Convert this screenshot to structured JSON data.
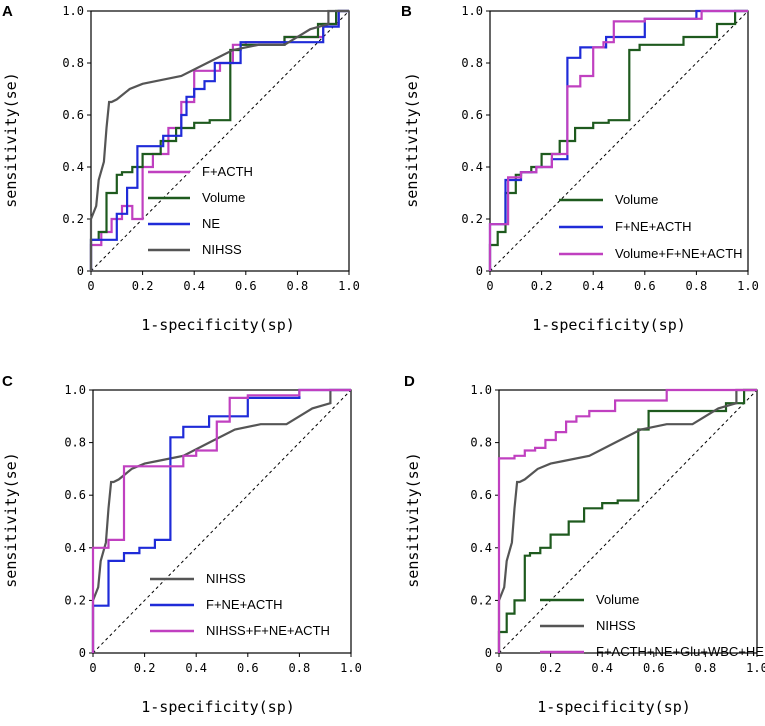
{
  "colors": {
    "magenta": "#c040c0",
    "green": "#1e5a1e",
    "blue": "#1f2bd8",
    "gray": "#555555",
    "diagonal": "#000000"
  },
  "chart_data": [
    {
      "type": "line",
      "panel": "A",
      "xlabel": "1-specificity(sp)",
      "ylabel": "sensitivity(se)",
      "xlim": [
        0,
        1
      ],
      "ylim": [
        0,
        1
      ],
      "x_ticks": [
        "0",
        "0.2",
        "0.4",
        "0.6",
        "0.8",
        "1.0"
      ],
      "y_ticks": [
        "0",
        "0.2",
        "0.4",
        "0.6",
        "0.8",
        "1.0"
      ],
      "legend_position": "right",
      "diagonal": true,
      "series": [
        {
          "name": "F+ACTH",
          "color": "#c040c0",
          "x": [
            0,
            0,
            0.04,
            0.04,
            0.08,
            0.08,
            0.12,
            0.12,
            0.16,
            0.16,
            0.2,
            0.2,
            0.24,
            0.24,
            0.3,
            0.3,
            0.35,
            0.35,
            0.4,
            0.4,
            0.5,
            0.5,
            0.55,
            0.55,
            0.6,
            0.6,
            0.75,
            0.75,
            0.9,
            0.9,
            0.96,
            0.96,
            1.0
          ],
          "y": [
            0,
            0.1,
            0.1,
            0.15,
            0.15,
            0.2,
            0.2,
            0.25,
            0.25,
            0.2,
            0.2,
            0.4,
            0.4,
            0.45,
            0.45,
            0.55,
            0.55,
            0.65,
            0.65,
            0.77,
            0.77,
            0.8,
            0.8,
            0.87,
            0.87,
            0.88,
            0.88,
            0.9,
            0.9,
            0.95,
            0.95,
            1.0,
            1.0
          ]
        },
        {
          "name": "Volume",
          "color": "#1e5a1e",
          "x": [
            0,
            0,
            0.03,
            0.03,
            0.06,
            0.06,
            0.1,
            0.1,
            0.12,
            0.12,
            0.16,
            0.16,
            0.2,
            0.2,
            0.27,
            0.27,
            0.33,
            0.33,
            0.4,
            0.4,
            0.46,
            0.46,
            0.54,
            0.54,
            0.58,
            0.58,
            0.75,
            0.75,
            0.88,
            0.88,
            0.95,
            0.95,
            1.0
          ],
          "y": [
            0,
            0.12,
            0.12,
            0.15,
            0.15,
            0.3,
            0.3,
            0.37,
            0.37,
            0.38,
            0.38,
            0.4,
            0.4,
            0.45,
            0.45,
            0.5,
            0.5,
            0.55,
            0.55,
            0.57,
            0.57,
            0.58,
            0.58,
            0.85,
            0.85,
            0.87,
            0.87,
            0.9,
            0.9,
            0.95,
            0.95,
            1.0,
            1.0
          ]
        },
        {
          "name": "NE",
          "color": "#1f2bd8",
          "x": [
            0,
            0,
            0.05,
            0.05,
            0.1,
            0.1,
            0.14,
            0.14,
            0.18,
            0.18,
            0.24,
            0.24,
            0.28,
            0.28,
            0.35,
            0.35,
            0.37,
            0.37,
            0.4,
            0.4,
            0.44,
            0.44,
            0.48,
            0.48,
            0.58,
            0.58,
            0.75,
            0.75,
            0.9,
            0.9,
            0.96,
            0.96,
            1.0
          ],
          "y": [
            0,
            0.12,
            0.12,
            0.12,
            0.12,
            0.22,
            0.22,
            0.32,
            0.32,
            0.48,
            0.48,
            0.48,
            0.48,
            0.52,
            0.52,
            0.6,
            0.6,
            0.67,
            0.67,
            0.7,
            0.7,
            0.73,
            0.73,
            0.8,
            0.8,
            0.88,
            0.88,
            0.88,
            0.88,
            0.94,
            0.94,
            1.0,
            1.0
          ]
        },
        {
          "name": "NIHSS",
          "color": "#555555",
          "x": [
            0,
            0,
            0.02,
            0.03,
            0.05,
            0.06,
            0.07,
            0.08,
            0.08,
            0.1,
            0.15,
            0.2,
            0.25,
            0.35,
            0.45,
            0.55,
            0.65,
            0.75,
            0.85,
            0.92,
            0.92,
            1.0
          ],
          "y": [
            0,
            0.2,
            0.25,
            0.35,
            0.42,
            0.55,
            0.65,
            0.65,
            0.65,
            0.66,
            0.7,
            0.72,
            0.73,
            0.75,
            0.8,
            0.85,
            0.87,
            0.87,
            0.93,
            0.95,
            1.0,
            1.0
          ]
        }
      ]
    },
    {
      "type": "line",
      "panel": "B",
      "xlabel": "1-specificity(sp)",
      "ylabel": "sensitivity(se)",
      "xlim": [
        0,
        1
      ],
      "ylim": [
        0,
        1
      ],
      "x_ticks": [
        "0",
        "0.2",
        "0.4",
        "0.6",
        "0.8",
        "1.0"
      ],
      "y_ticks": [
        "0",
        "0.2",
        "0.4",
        "0.6",
        "0.8",
        "1.0"
      ],
      "legend_position": "bottom-right",
      "diagonal": true,
      "series": [
        {
          "name": "Volume",
          "color": "#1e5a1e",
          "x": [
            0,
            0,
            0.03,
            0.03,
            0.06,
            0.06,
            0.1,
            0.1,
            0.12,
            0.12,
            0.16,
            0.16,
            0.2,
            0.2,
            0.27,
            0.27,
            0.33,
            0.33,
            0.4,
            0.4,
            0.46,
            0.46,
            0.54,
            0.54,
            0.58,
            0.58,
            0.75,
            0.75,
            0.88,
            0.88,
            0.95,
            0.95,
            1.0
          ],
          "y": [
            0,
            0.1,
            0.1,
            0.15,
            0.15,
            0.3,
            0.3,
            0.37,
            0.37,
            0.38,
            0.38,
            0.4,
            0.4,
            0.45,
            0.45,
            0.5,
            0.5,
            0.55,
            0.55,
            0.57,
            0.57,
            0.58,
            0.58,
            0.85,
            0.85,
            0.87,
            0.87,
            0.9,
            0.9,
            0.95,
            0.95,
            1.0,
            1.0
          ]
        },
        {
          "name": "F+NE+ACTH",
          "color": "#1f2bd8",
          "x": [
            0,
            0,
            0.06,
            0.06,
            0.12,
            0.12,
            0.18,
            0.18,
            0.24,
            0.24,
            0.3,
            0.3,
            0.35,
            0.35,
            0.45,
            0.45,
            0.6,
            0.6,
            0.8,
            0.8,
            1.0
          ],
          "y": [
            0,
            0.18,
            0.18,
            0.35,
            0.35,
            0.38,
            0.38,
            0.4,
            0.4,
            0.43,
            0.43,
            0.82,
            0.82,
            0.86,
            0.86,
            0.9,
            0.9,
            0.97,
            0.97,
            1.0,
            1.0
          ]
        },
        {
          "name": "Volume+F+NE+ACTH",
          "color": "#c040c0",
          "x": [
            0,
            0,
            0.07,
            0.07,
            0.12,
            0.12,
            0.18,
            0.18,
            0.24,
            0.24,
            0.3,
            0.3,
            0.35,
            0.35,
            0.4,
            0.4,
            0.44,
            0.44,
            0.48,
            0.48,
            0.6,
            0.6,
            0.82,
            0.82,
            1.0
          ],
          "y": [
            0,
            0.18,
            0.18,
            0.36,
            0.36,
            0.38,
            0.38,
            0.4,
            0.4,
            0.45,
            0.45,
            0.71,
            0.71,
            0.75,
            0.75,
            0.86,
            0.86,
            0.88,
            0.88,
            0.96,
            0.96,
            0.97,
            0.97,
            1.0,
            1.0
          ]
        }
      ]
    },
    {
      "type": "line",
      "panel": "C",
      "xlabel": "1-specificity(sp)",
      "ylabel": "sensitivity(se)",
      "xlim": [
        0,
        1
      ],
      "ylim": [
        0,
        1
      ],
      "x_ticks": [
        "0",
        "0.2",
        "0.4",
        "0.6",
        "0.8",
        "1.0"
      ],
      "y_ticks": [
        "0",
        "0.2",
        "0.4",
        "0.6",
        "0.8",
        "1.0"
      ],
      "legend_position": "bottom-right",
      "diagonal": true,
      "series": [
        {
          "name": "NIHSS",
          "color": "#555555",
          "x": [
            0,
            0,
            0.02,
            0.03,
            0.05,
            0.06,
            0.07,
            0.08,
            0.08,
            0.1,
            0.15,
            0.2,
            0.25,
            0.35,
            0.45,
            0.55,
            0.65,
            0.75,
            0.85,
            0.92,
            0.92,
            1.0
          ],
          "y": [
            0,
            0.2,
            0.25,
            0.35,
            0.42,
            0.55,
            0.65,
            0.65,
            0.65,
            0.66,
            0.7,
            0.72,
            0.73,
            0.75,
            0.8,
            0.85,
            0.87,
            0.87,
            0.93,
            0.95,
            1.0,
            1.0
          ]
        },
        {
          "name": "F+NE+ACTH",
          "color": "#1f2bd8",
          "x": [
            0,
            0,
            0.06,
            0.06,
            0.12,
            0.12,
            0.18,
            0.18,
            0.24,
            0.24,
            0.3,
            0.3,
            0.35,
            0.35,
            0.45,
            0.45,
            0.6,
            0.6,
            0.8,
            0.8,
            1.0
          ],
          "y": [
            0,
            0.18,
            0.18,
            0.35,
            0.35,
            0.38,
            0.38,
            0.4,
            0.4,
            0.43,
            0.43,
            0.82,
            0.82,
            0.86,
            0.86,
            0.9,
            0.9,
            0.97,
            0.97,
            1.0,
            1.0
          ]
        },
        {
          "name": "NIHSS+F+NE+ACTH",
          "color": "#c040c0",
          "x": [
            0,
            0,
            0.06,
            0.06,
            0.12,
            0.12,
            0.35,
            0.35,
            0.4,
            0.4,
            0.48,
            0.48,
            0.53,
            0.53,
            0.6,
            0.6,
            0.8,
            0.8,
            1.0
          ],
          "y": [
            0,
            0.4,
            0.4,
            0.43,
            0.43,
            0.71,
            0.71,
            0.75,
            0.75,
            0.77,
            0.77,
            0.88,
            0.88,
            0.97,
            0.97,
            0.98,
            0.98,
            1.0,
            1.0
          ]
        }
      ]
    },
    {
      "type": "line",
      "panel": "D",
      "xlabel": "1-specificity(sp)",
      "ylabel": "sensitivity(se)",
      "xlim": [
        0,
        1
      ],
      "ylim": [
        0,
        1
      ],
      "x_ticks": [
        "0",
        "0.2",
        "0.4",
        "0.6",
        "0.8",
        "1.0"
      ],
      "y_ticks": [
        "0",
        "0.2",
        "0.4",
        "0.6",
        "0.8",
        "1.0"
      ],
      "legend_position": "bottom-right",
      "diagonal": true,
      "series": [
        {
          "name": "Volume",
          "color": "#1e5a1e",
          "x": [
            0,
            0,
            0.03,
            0.03,
            0.06,
            0.06,
            0.1,
            0.1,
            0.12,
            0.12,
            0.16,
            0.16,
            0.2,
            0.2,
            0.27,
            0.27,
            0.33,
            0.33,
            0.4,
            0.4,
            0.46,
            0.46,
            0.54,
            0.54,
            0.58,
            0.58,
            0.75,
            0.75,
            0.88,
            0.88,
            0.95,
            0.95,
            1.0
          ],
          "y": [
            0,
            0.08,
            0.08,
            0.15,
            0.15,
            0.2,
            0.2,
            0.37,
            0.37,
            0.38,
            0.38,
            0.4,
            0.4,
            0.45,
            0.45,
            0.5,
            0.5,
            0.55,
            0.55,
            0.57,
            0.57,
            0.58,
            0.58,
            0.85,
            0.85,
            0.92,
            0.92,
            0.92,
            0.92,
            0.95,
            0.95,
            1.0,
            1.0
          ]
        },
        {
          "name": "NIHSS",
          "color": "#555555",
          "x": [
            0,
            0,
            0.02,
            0.03,
            0.05,
            0.06,
            0.07,
            0.08,
            0.08,
            0.1,
            0.15,
            0.2,
            0.25,
            0.35,
            0.45,
            0.55,
            0.65,
            0.75,
            0.85,
            0.92,
            0.92,
            1.0
          ],
          "y": [
            0,
            0.2,
            0.25,
            0.35,
            0.42,
            0.55,
            0.65,
            0.65,
            0.65,
            0.66,
            0.7,
            0.72,
            0.73,
            0.75,
            0.8,
            0.85,
            0.87,
            0.87,
            0.93,
            0.95,
            1.0,
            1.0
          ]
        },
        {
          "name": "F+ACTH+NE+Glu+WBC+HE",
          "color": "#c040c0",
          "x": [
            0,
            0,
            0.06,
            0.06,
            0.1,
            0.1,
            0.14,
            0.14,
            0.18,
            0.18,
            0.22,
            0.22,
            0.26,
            0.26,
            0.3,
            0.3,
            0.35,
            0.35,
            0.45,
            0.45,
            0.65,
            0.65,
            1.0
          ],
          "y": [
            0,
            0.74,
            0.74,
            0.75,
            0.75,
            0.77,
            0.77,
            0.78,
            0.78,
            0.81,
            0.81,
            0.84,
            0.84,
            0.88,
            0.88,
            0.9,
            0.9,
            0.92,
            0.92,
            0.96,
            0.96,
            1.0,
            1.0
          ]
        }
      ]
    }
  ]
}
